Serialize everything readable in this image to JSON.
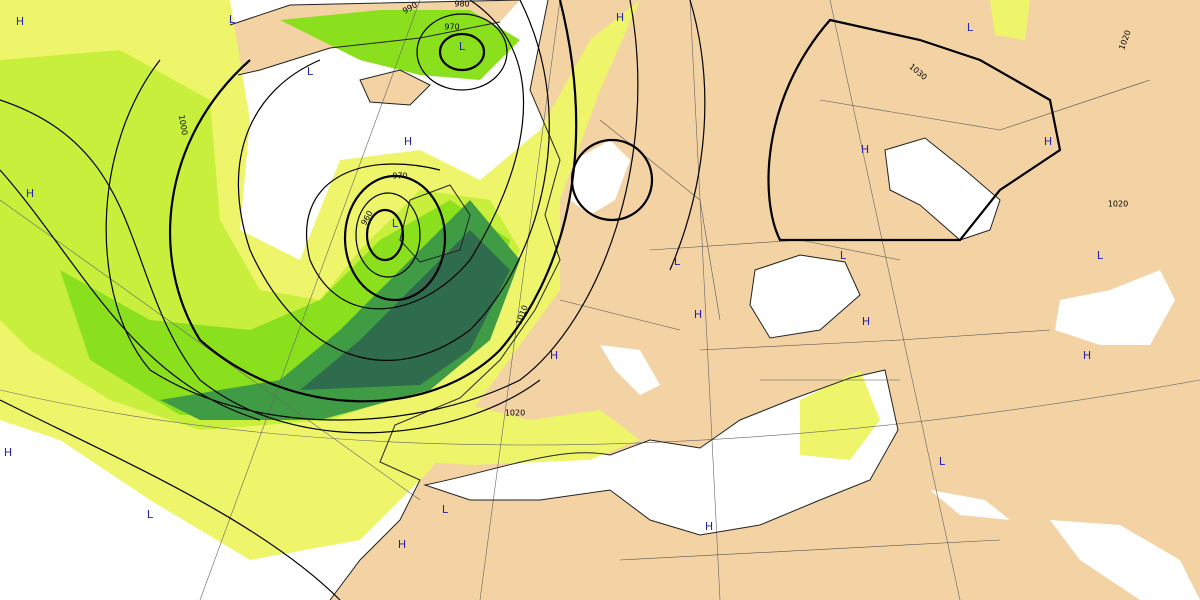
{
  "isobar_labels": [
    "990",
    "980",
    "970",
    "1000",
    "970",
    "960",
    "1010",
    "1020",
    "1030",
    "1020",
    "1020"
  ],
  "pressure_centers": [
    "L",
    "H",
    "L",
    "H",
    "L",
    "L",
    "H",
    "H",
    "H",
    "H",
    "L",
    "L",
    "L",
    "L",
    "H",
    "H",
    "H",
    "H",
    "H",
    "L",
    "L",
    "H",
    "H",
    "L"
  ]
}
